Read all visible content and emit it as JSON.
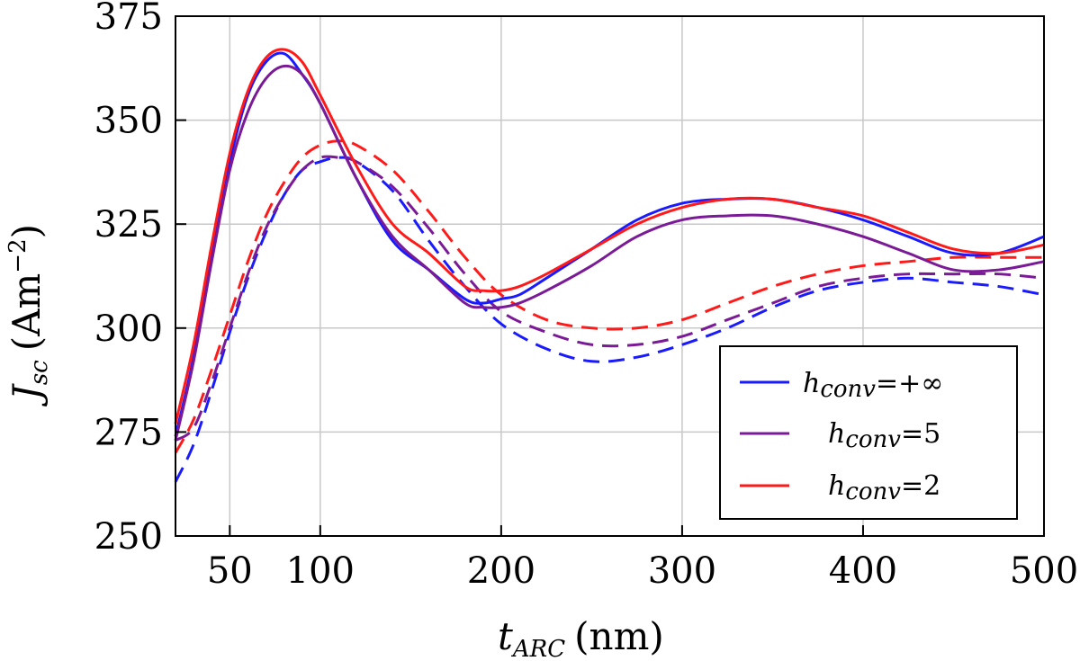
{
  "chart_data": {
    "type": "line",
    "xlabel": {
      "main": "t",
      "sub": "ARC",
      "unit": "(nm)"
    },
    "ylabel": {
      "main": "J",
      "sub": "sc",
      "unit_open": "(Am",
      "unit_sup": "−2",
      "unit_close": ")"
    },
    "xlim": [
      20,
      500
    ],
    "ylim": [
      250,
      375
    ],
    "xticks": [
      50,
      100,
      200,
      300,
      400,
      500
    ],
    "yticks": [
      250,
      275,
      300,
      325,
      350,
      375
    ],
    "legend": [
      {
        "name_main": "h",
        "name_sub": "conv",
        "name_value": "=+∞",
        "color": "#1a1aff"
      },
      {
        "name_main": "h",
        "name_sub": "conv",
        "name_value": "=5",
        "color": "#7b1a96"
      },
      {
        "name_main": "h",
        "name_sub": "conv",
        "name_value": "=2",
        "color": "#ff1a1a"
      }
    ],
    "legend_position": "lower-right",
    "series": [
      {
        "name": "h_conv=+∞ solid",
        "color": "#1a1aff",
        "dash": false,
        "x": [
          20,
          30,
          40,
          50,
          60,
          70,
          80,
          90,
          100,
          120,
          140,
          160,
          180,
          190,
          200,
          210,
          225,
          250,
          275,
          300,
          325,
          350,
          375,
          400,
          425,
          450,
          475,
          500
        ],
        "y": [
          274,
          293,
          318,
          340,
          356,
          364,
          366,
          361,
          354,
          336,
          321,
          314,
          307,
          306,
          307,
          308,
          312,
          319,
          326,
          330,
          331,
          331,
          329,
          326,
          322,
          318,
          318,
          322
        ]
      },
      {
        "name": "h_conv=5 solid",
        "color": "#7b1a96",
        "dash": false,
        "x": [
          20,
          30,
          40,
          50,
          60,
          70,
          80,
          90,
          100,
          120,
          140,
          160,
          180,
          190,
          200,
          210,
          225,
          250,
          275,
          300,
          325,
          350,
          375,
          400,
          425,
          450,
          475,
          500
        ],
        "y": [
          273,
          292,
          316,
          338,
          352,
          360,
          363,
          361,
          354,
          336,
          322,
          314,
          306,
          305,
          305,
          306,
          309,
          315,
          322,
          326,
          327,
          327,
          325,
          322,
          318,
          314,
          314,
          316
        ]
      },
      {
        "name": "h_conv=2 solid",
        "color": "#ff1a1a",
        "dash": false,
        "x": [
          20,
          30,
          40,
          50,
          60,
          70,
          80,
          90,
          100,
          120,
          140,
          160,
          180,
          190,
          200,
          210,
          225,
          250,
          275,
          300,
          325,
          350,
          375,
          400,
          425,
          450,
          475,
          500
        ],
        "y": [
          277,
          296,
          320,
          342,
          357,
          365,
          367,
          364,
          356,
          339,
          325,
          318,
          310,
          309,
          309,
          310,
          313,
          319,
          325,
          329,
          331,
          331,
          329,
          327,
          323,
          319,
          318,
          320
        ]
      },
      {
        "name": "h_conv=+∞ dashed",
        "color": "#1a1aff",
        "dash": true,
        "x": [
          20,
          30,
          40,
          50,
          60,
          70,
          80,
          90,
          100,
          110,
          120,
          140,
          160,
          180,
          200,
          225,
          250,
          275,
          300,
          325,
          350,
          375,
          400,
          425,
          450,
          475,
          500
        ],
        "y": [
          263,
          272,
          285,
          299,
          312,
          323,
          332,
          338,
          340,
          341,
          340,
          333,
          321,
          310,
          301,
          295,
          292,
          293,
          296,
          300,
          305,
          309,
          311,
          312,
          311,
          310,
          308
        ]
      },
      {
        "name": "h_conv=5 dashed",
        "color": "#7b1a96",
        "dash": true,
        "x": [
          20,
          30,
          40,
          50,
          60,
          70,
          80,
          90,
          100,
          110,
          120,
          140,
          160,
          180,
          200,
          225,
          250,
          275,
          300,
          325,
          350,
          375,
          400,
          425,
          450,
          475,
          500
        ],
        "y": [
          273,
          276,
          287,
          300,
          313,
          324,
          332,
          338,
          341,
          341,
          340,
          334,
          324,
          313,
          304,
          299,
          296,
          296,
          298,
          302,
          306,
          310,
          312,
          313,
          313,
          313,
          312
        ]
      },
      {
        "name": "h_conv=2 dashed",
        "color": "#ff1a1a",
        "dash": true,
        "x": [
          20,
          30,
          40,
          50,
          60,
          70,
          80,
          90,
          100,
          110,
          120,
          140,
          160,
          180,
          200,
          225,
          250,
          275,
          300,
          325,
          350,
          375,
          400,
          425,
          450,
          475,
          500
        ],
        "y": [
          270,
          278,
          290,
          303,
          316,
          327,
          335,
          341,
          344,
          345,
          344,
          338,
          328,
          317,
          308,
          302,
          300,
          300,
          302,
          306,
          310,
          313,
          315,
          316,
          317,
          317,
          317
        ]
      }
    ]
  }
}
